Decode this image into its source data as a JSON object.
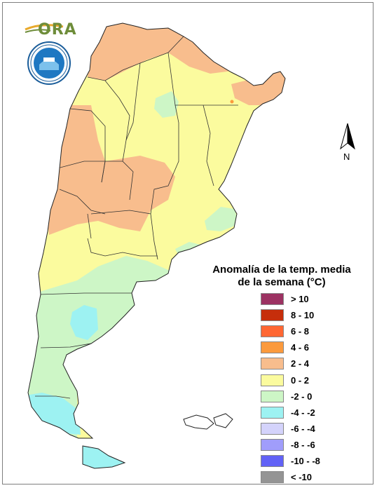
{
  "logos": {
    "ora_text": "ORA",
    "smn_seal_name": "smn-seal"
  },
  "north_label": "N",
  "legend": {
    "title_line1": "Anomalía de la temp. media",
    "title_line2": "de la semana (°C)",
    "items": [
      {
        "label": "> 10",
        "color": "#9c3262"
      },
      {
        "label": "8 - 10",
        "color": "#c62e0b"
      },
      {
        "label": "6 - 8",
        "color": "#ff6733"
      },
      {
        "label": "4 - 6",
        "color": "#fb9a3d"
      },
      {
        "label": "2 - 4",
        "color": "#f8bd8d"
      },
      {
        "label": "0 - 2",
        "color": "#fbfb9e"
      },
      {
        "label": "-2 - 0",
        "color": "#cdf6c6"
      },
      {
        "label": "-4 - -2",
        "color": "#9df2f2"
      },
      {
        "label": "-6 - -4",
        "color": "#d4d3fb"
      },
      {
        "label": "-8 - -6",
        "color": "#a09dfb"
      },
      {
        "label": "-10 - -8",
        "color": "#6262f6"
      },
      {
        "label": "< -10",
        "color": "#949494"
      }
    ]
  }
}
